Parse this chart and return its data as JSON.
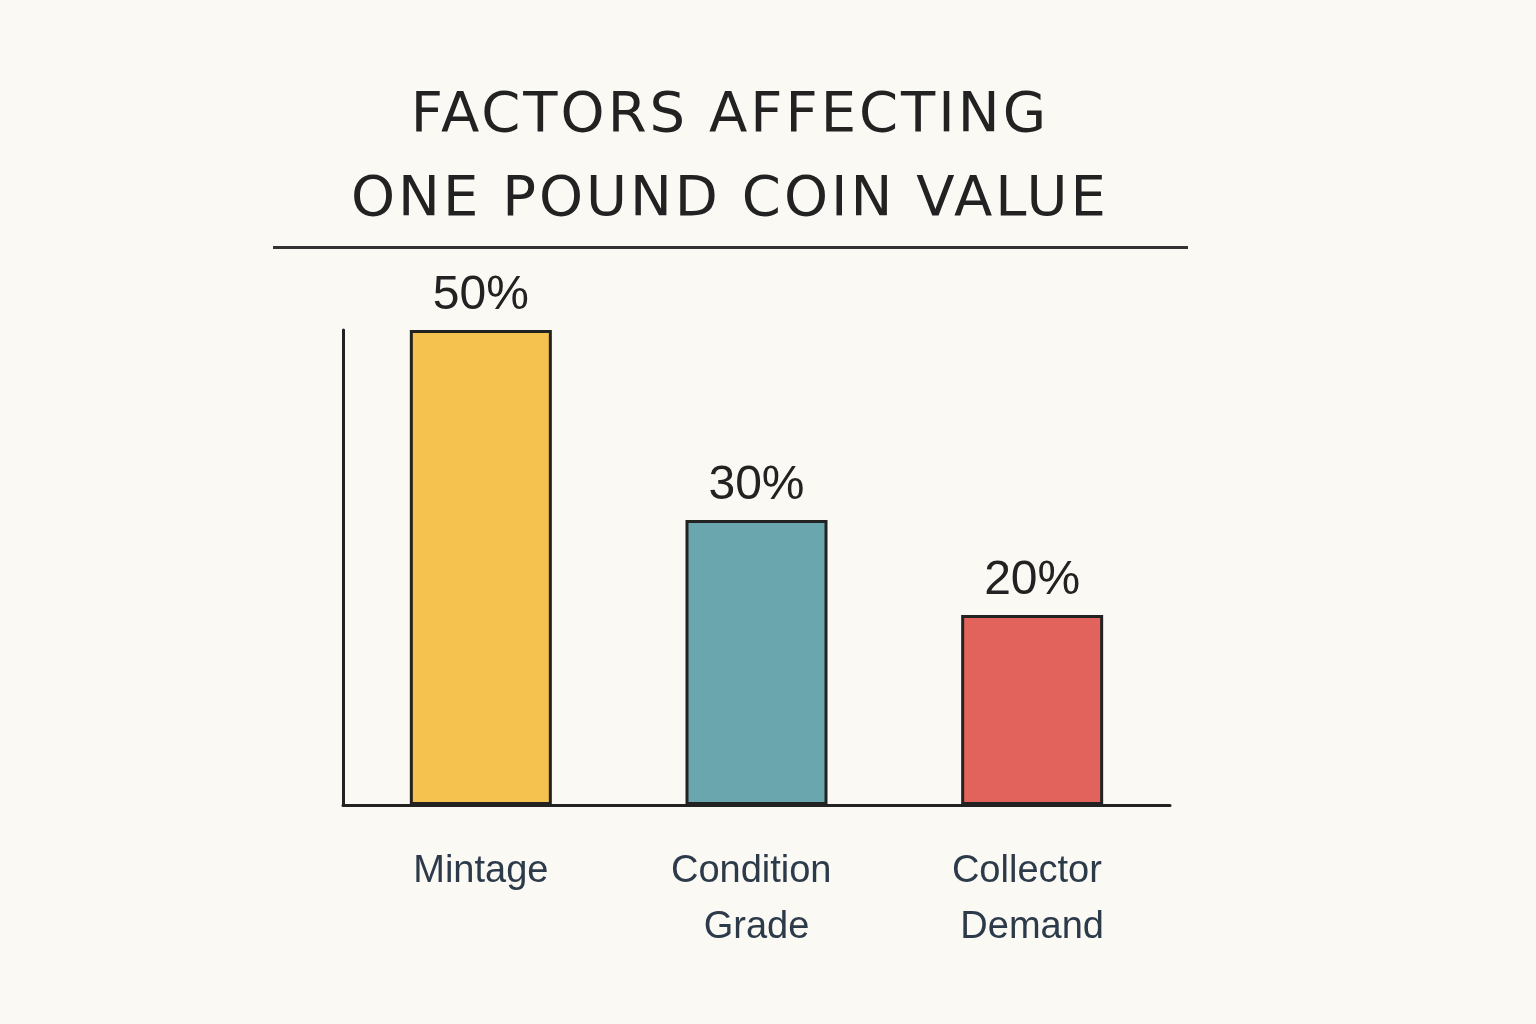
{
  "chart_data": {
    "type": "bar",
    "title": "FACTORS AFFECTING ONE POUND COIN VALUE",
    "categories": [
      "Mintage",
      "Condition Grade",
      "Collector Demand"
    ],
    "values": [
      50,
      30,
      20
    ],
    "colors": [
      "#f5c24f",
      "#6aa6ae",
      "#e2625c"
    ],
    "value_labels": [
      "50%",
      "30%",
      "20%"
    ]
  }
}
